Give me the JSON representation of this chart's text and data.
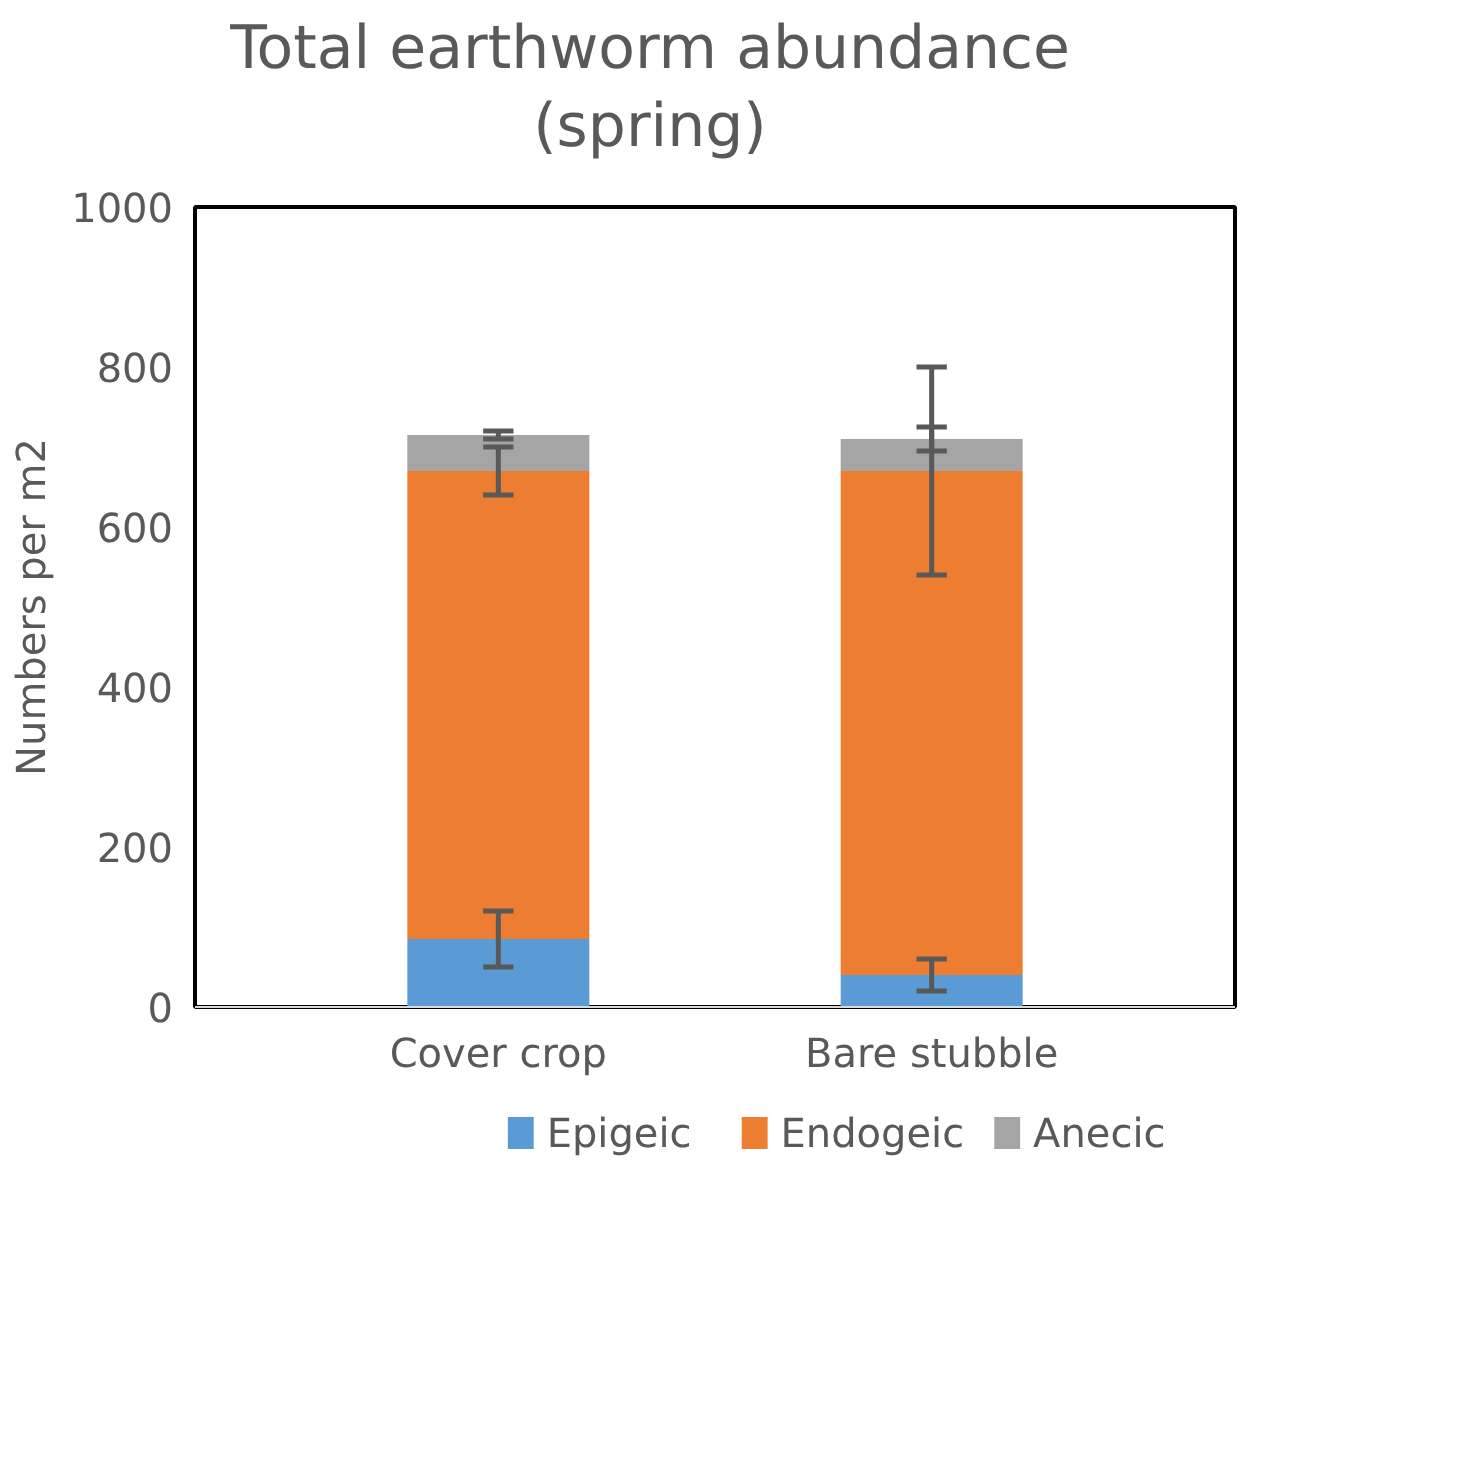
{
  "chart_data": {
    "type": "bar",
    "title": "Total earthworm abundance\n(spring)",
    "ylabel": "Numbers per m2",
    "categories": [
      "Cover crop",
      "Bare stubble"
    ],
    "stacked": true,
    "series": [
      {
        "name": "Epigeic",
        "color": "#5b9bd5",
        "values": [
          85,
          40
        ],
        "errors": [
          35,
          20
        ]
      },
      {
        "name": "Endogeic",
        "color": "#ed7d31",
        "values": [
          585,
          630
        ],
        "errors": [
          30,
          130
        ]
      },
      {
        "name": "Anecic",
        "color": "#a5a5a5",
        "values": [
          45,
          40
        ],
        "errors": [
          5,
          15
        ]
      }
    ],
    "ylim": [
      0,
      1000
    ],
    "yticks": [
      0,
      200,
      400,
      600,
      800,
      1000
    ],
    "grid": false,
    "legend": "bottom"
  }
}
